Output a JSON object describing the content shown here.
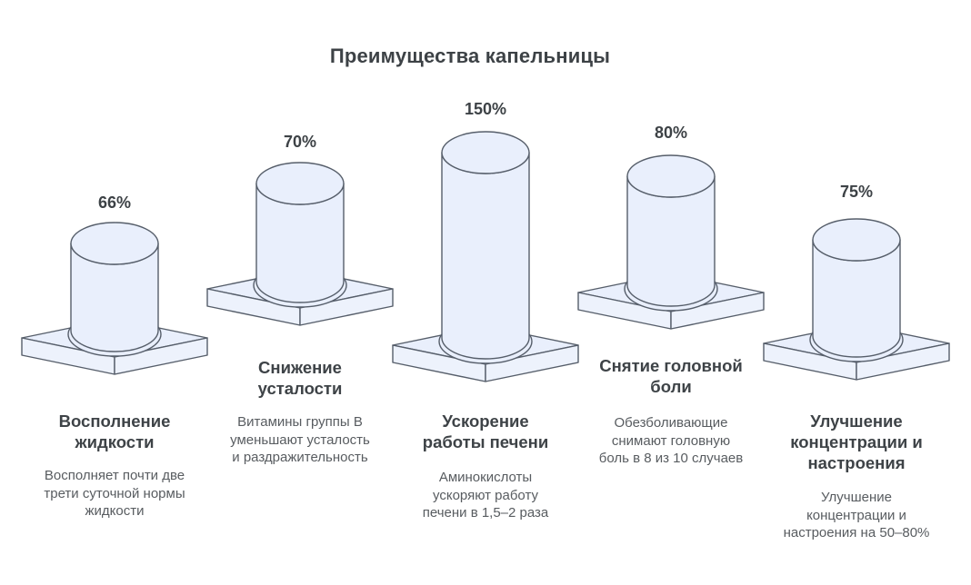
{
  "title": "Преимущества капельницы",
  "chart_data": {
    "type": "bar",
    "variant": "isometric-cylinders-on-pedestals",
    "title": "Преимущества капельницы",
    "unit": "%",
    "grid": false,
    "legend": false,
    "categories": [
      "Восполнение жидкости",
      "Снижение усталости",
      "Ускорение работы печени",
      "Снятие головной боли",
      "Улучшение концентрации и настроения"
    ],
    "values": [
      66,
      70,
      150,
      80,
      75
    ],
    "items": [
      {
        "value": 66,
        "value_label": "66%",
        "heading_lines": [
          "Восполнение",
          "жидкости"
        ],
        "description_lines": [
          "Восполняет почти две",
          "трети суточной нормы",
          "жидкости"
        ]
      },
      {
        "value": 70,
        "value_label": "70%",
        "heading_lines": [
          "Снижение",
          "усталости"
        ],
        "description_lines": [
          "Витамины группы B",
          "уменьшают усталость",
          "и раздражительность"
        ]
      },
      {
        "value": 150,
        "value_label": "150%",
        "heading_lines": [
          "Ускорение",
          "работы печени"
        ],
        "description_lines": [
          "Аминокислоты",
          "ускоряют работу",
          "печени в 1,5–2 раза"
        ]
      },
      {
        "value": 80,
        "value_label": "80%",
        "heading_lines": [
          "Снятие головной",
          "боли"
        ],
        "description_lines": [
          "Обезболивающие",
          "снимают головную",
          "боль в 8 из 10 случаев"
        ]
      },
      {
        "value": 75,
        "value_label": "75%",
        "heading_lines": [
          "Улучшение",
          "концентрации и",
          "настроения"
        ],
        "description_lines": [
          "Улучшение",
          "концентрации и",
          "настроения на 50–80%"
        ]
      }
    ],
    "colors": {
      "shape_fill": "#e9effc",
      "shape_side_fill": "#edf2fc",
      "shape_stroke": "#565e6a",
      "title_text": "#3d4246",
      "heading_text": "#3e4347",
      "description_text": "#585c60",
      "background": "#ffffff"
    }
  }
}
